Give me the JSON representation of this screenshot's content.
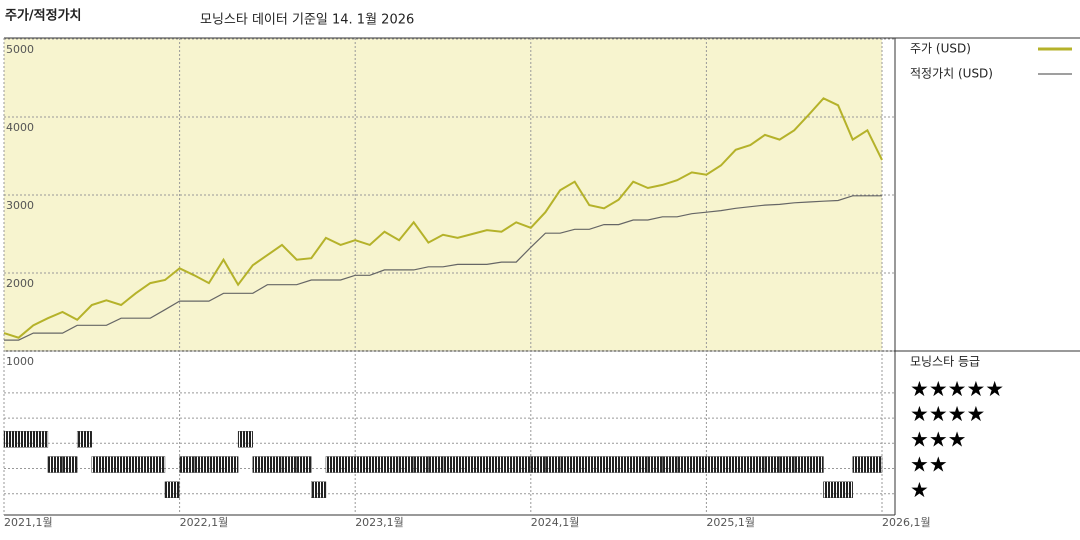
{
  "chart_data": [
    {
      "type": "line",
      "title": "주가/적정가치",
      "subtitle": "모닝스타 데이터 기준일 14. 1월 2026",
      "x": [
        "2021-01",
        "2021-02",
        "2021-03",
        "2021-04",
        "2021-05",
        "2021-06",
        "2021-07",
        "2021-08",
        "2021-09",
        "2021-10",
        "2021-11",
        "2021-12",
        "2022-01",
        "2022-02",
        "2022-03",
        "2022-04",
        "2022-05",
        "2022-06",
        "2022-07",
        "2022-08",
        "2022-09",
        "2022-10",
        "2022-11",
        "2022-12",
        "2023-01",
        "2023-02",
        "2023-03",
        "2023-04",
        "2023-05",
        "2023-06",
        "2023-07",
        "2023-08",
        "2023-09",
        "2023-10",
        "2023-11",
        "2023-12",
        "2024-01",
        "2024-02",
        "2024-03",
        "2024-04",
        "2024-05",
        "2024-06",
        "2024-07",
        "2024-08",
        "2024-09",
        "2024-10",
        "2024-11",
        "2024-12",
        "2025-01",
        "2025-02",
        "2025-03",
        "2025-04",
        "2025-05",
        "2025-06",
        "2025-07",
        "2025-08",
        "2025-09",
        "2025-10",
        "2025-11",
        "2025-12",
        "2026-01"
      ],
      "series": [
        {
          "name": "주가 (USD)",
          "color": "#b5b22a",
          "values": [
            1230,
            1170,
            1330,
            1420,
            1500,
            1400,
            1590,
            1650,
            1590,
            1740,
            1870,
            1910,
            2060,
            1970,
            1870,
            2170,
            1850,
            2100,
            2230,
            2360,
            2170,
            2190,
            2450,
            2360,
            2420,
            2360,
            2530,
            2420,
            2650,
            2390,
            2490,
            2450,
            2500,
            2550,
            2530,
            2650,
            2580,
            2780,
            3060,
            3170,
            2870,
            2830,
            2940,
            3170,
            3090,
            3130,
            3190,
            3290,
            3260,
            3380,
            3580,
            3640,
            3770,
            3710,
            3830,
            4030,
            4240,
            4150,
            3710,
            3830,
            3450
          ]
        },
        {
          "name": "적정가치 (USD)",
          "color": "#666666",
          "values": [
            1140,
            1140,
            1230,
            1230,
            1230,
            1330,
            1330,
            1330,
            1420,
            1420,
            1420,
            1530,
            1640,
            1640,
            1640,
            1740,
            1740,
            1740,
            1850,
            1850,
            1850,
            1910,
            1910,
            1910,
            1970,
            1970,
            2040,
            2040,
            2040,
            2080,
            2080,
            2110,
            2110,
            2110,
            2140,
            2140,
            2330,
            2510,
            2510,
            2560,
            2560,
            2620,
            2620,
            2680,
            2680,
            2720,
            2720,
            2760,
            2780,
            2800,
            2830,
            2850,
            2870,
            2880,
            2900,
            2910,
            2920,
            2930,
            2990,
            2990,
            2990
          ]
        }
      ],
      "ylim": [
        1000,
        5000
      ],
      "yticks": [
        1000,
        2000,
        3000,
        4000,
        5000
      ],
      "xticks": [
        {
          "value": "2021-01",
          "label": "2021,1월"
        },
        {
          "value": "2022-01",
          "label": "2022,1월"
        },
        {
          "value": "2023-01",
          "label": "2023,1월"
        },
        {
          "value": "2024-01",
          "label": "2024,1월"
        },
        {
          "value": "2025-01",
          "label": "2025,1월"
        },
        {
          "value": "2026-01",
          "label": "2026,1월"
        }
      ],
      "background": "#f7f4cf",
      "grid": true
    },
    {
      "type": "rating",
      "title": "모닝스타 등급",
      "x": [
        "2021-01",
        "2021-02",
        "2021-03",
        "2021-04",
        "2021-05",
        "2021-06",
        "2021-07",
        "2021-08",
        "2021-09",
        "2021-10",
        "2021-11",
        "2021-12",
        "2022-01",
        "2022-02",
        "2022-03",
        "2022-04",
        "2022-05",
        "2022-06",
        "2022-07",
        "2022-08",
        "2022-09",
        "2022-10",
        "2022-11",
        "2022-12",
        "2023-01",
        "2023-02",
        "2023-03",
        "2023-04",
        "2023-05",
        "2023-06",
        "2023-07",
        "2023-08",
        "2023-09",
        "2023-10",
        "2023-11",
        "2023-12",
        "2024-01",
        "2024-02",
        "2024-03",
        "2024-04",
        "2024-05",
        "2024-06",
        "2024-07",
        "2024-08",
        "2024-09",
        "2024-10",
        "2024-11",
        "2024-12",
        "2025-01",
        "2025-02",
        "2025-03",
        "2025-04",
        "2025-05",
        "2025-06",
        "2025-07",
        "2025-08",
        "2025-09",
        "2025-10",
        "2025-11",
        "2025-12"
      ],
      "values": [
        3,
        3,
        3,
        2,
        2,
        3,
        2,
        2,
        2,
        2,
        2,
        1,
        2,
        2,
        2,
        2,
        3,
        2,
        2,
        2,
        2,
        1,
        2,
        2,
        2,
        2,
        2,
        2,
        2,
        2,
        2,
        2,
        2,
        2,
        2,
        2,
        2,
        2,
        2,
        2,
        2,
        2,
        2,
        2,
        2,
        2,
        2,
        2,
        2,
        2,
        2,
        2,
        2,
        2,
        2,
        2,
        1,
        1,
        2,
        2
      ],
      "color": "#222222",
      "ylim": [
        0,
        6.5
      ],
      "yticks": [
        {
          "value": 5,
          "label": "★★★★★"
        },
        {
          "value": 4,
          "label": "★★★★"
        },
        {
          "value": 3,
          "label": "★★★"
        },
        {
          "value": 2,
          "label": "★★"
        },
        {
          "value": 1,
          "label": "★"
        }
      ]
    }
  ]
}
